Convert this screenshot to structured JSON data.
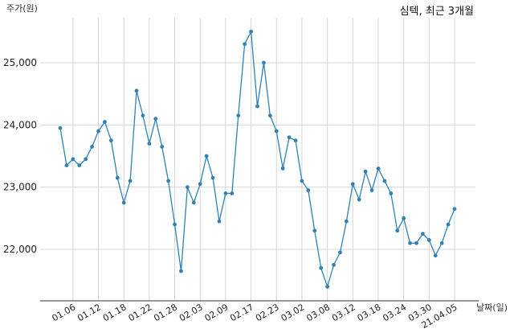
{
  "chart_data": {
    "type": "line",
    "title": "심텍, 최근 3개월",
    "ylabel": "주가(원)",
    "xlabel": "날짜(일)",
    "ylim": [
      21200,
      25600
    ],
    "y_ticks": [
      22000,
      23000,
      24000,
      25000
    ],
    "y_tick_labels": [
      "22,000",
      "23,000",
      "24,000",
      "25,000"
    ],
    "x_tick_labels": [
      "01.06",
      "01.12",
      "01.18",
      "01.22",
      "01.28",
      "02.03",
      "02.09",
      "02.17",
      "02.23",
      "03.02",
      "03.08",
      "03.12",
      "03.18",
      "03.24",
      "03.30",
      "21.04.05"
    ],
    "x_tick_indices": [
      2,
      6,
      10,
      14,
      18,
      22,
      26,
      30,
      34,
      38,
      42,
      46,
      50,
      54,
      58,
      62
    ],
    "grid": true,
    "color": "#2e82b5",
    "series": [
      {
        "values": [
          23950,
          23350,
          23450,
          23350,
          23450,
          23650,
          23900,
          24050,
          23750,
          23150,
          22750,
          23100,
          24550,
          24150,
          23700,
          24100,
          23650,
          23100,
          22400,
          21650,
          23000,
          22750,
          23050,
          23500,
          23150,
          22450,
          22900,
          22900,
          24150,
          25300,
          25500,
          24300,
          25000,
          24150,
          23900,
          23300,
          23800,
          23750,
          23100,
          22950,
          22300,
          21700,
          21400,
          21750,
          21950,
          22450,
          23050,
          22800,
          23250,
          22950,
          23300,
          23100,
          22900,
          22300,
          22500,
          22100,
          22100,
          22250,
          22150,
          21900,
          22100,
          22400,
          22650
        ]
      }
    ]
  }
}
